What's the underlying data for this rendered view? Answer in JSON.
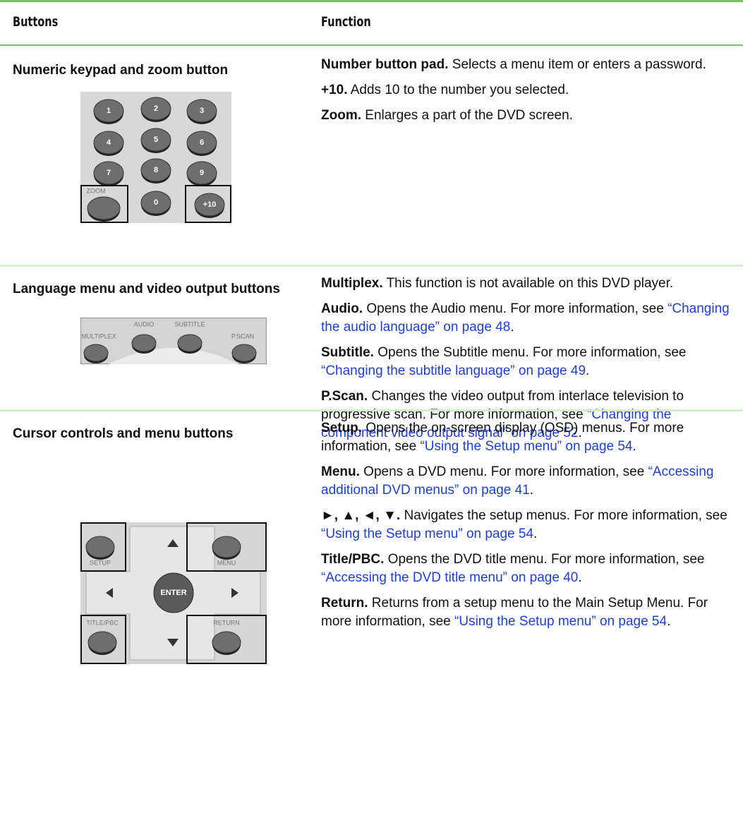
{
  "header": {
    "col1": "Buttons",
    "col2": "Function"
  },
  "rows": [
    {
      "button": "Numeric keypad and zoom button",
      "image_labels": [
        "1",
        "2",
        "3",
        "4",
        "5",
        "6",
        "7",
        "8",
        "9",
        "ZOOM",
        "0",
        "+10"
      ],
      "functions": [
        {
          "term": "Number button pad.",
          "text": "Selects a menu item or enters a password."
        },
        {
          "term": "+10.",
          "text": "Adds 10 to the number you selected."
        },
        {
          "term": "Zoom.",
          "text": "Enlarges a part of the DVD screen."
        }
      ]
    },
    {
      "button": "Language menu and video output buttons",
      "image_labels": [
        "MULTIPLEX",
        "AUDIO",
        "SUBTITLE",
        "P.SCAN"
      ],
      "functions": [
        {
          "term": "Multiplex.",
          "text": "This function is not available on this DVD player."
        },
        {
          "term": "Audio.",
          "text": "Opens the Audio menu. For more information, see",
          "link": "“Changing the audio language” on page 48",
          "after": "."
        },
        {
          "term": "Subtitle.",
          "text": "Opens the Subtitle menu. For more information, see",
          "link": "“Changing the subtitle language” on page 49",
          "after": "."
        },
        {
          "term": "P.Scan.",
          "text": "Changes the video output from interlace television to progressive scan. For more information, see",
          "link": "“Changing the component video output signal” on page 52",
          "after": "."
        }
      ]
    },
    {
      "button": "Cursor controls and menu buttons",
      "image_labels": [
        "SETUP",
        "MENU",
        "ENTER",
        "TITLE/PBC",
        "RETURN"
      ],
      "functions": [
        {
          "term": "Setup.",
          "text": "Opens the on-screen display (OSD) menus. For more information, see",
          "link": "“Using the Setup menu” on page 54",
          "after": "."
        },
        {
          "term": "Menu.",
          "text": "Opens a DVD menu. For more information, see",
          "link": "“Accessing additional DVD menus” on page 41",
          "after": "."
        },
        {
          "term": "►, ▲, ◄, ▼.",
          "text": "Navigates the setup menus. For more information, see",
          "link": "“Using the Setup menu” on page 54",
          "after": "."
        },
        {
          "term": "Title/PBC.",
          "text": "Opens the DVD title menu. For more information, see",
          "link": "“Accessing the DVD title menu” on page 40",
          "after": "."
        },
        {
          "term": "Return.",
          "text": "Returns from a setup menu to the Main Setup Menu. For more information, see",
          "link": "“Using the Setup menu” on page 54",
          "after": "."
        }
      ]
    }
  ]
}
